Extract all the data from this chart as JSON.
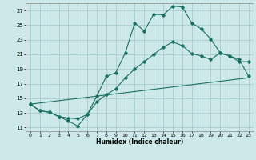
{
  "xlabel": "Humidex (Indice chaleur)",
  "background_color": "#cce8e8",
  "grid_color": "#aacccc",
  "line_color": "#1a7060",
  "xlim": [
    -0.5,
    23.5
  ],
  "ylim": [
    10.5,
    28.0
  ],
  "yticks": [
    11,
    13,
    15,
    17,
    19,
    21,
    23,
    25,
    27
  ],
  "xticks": [
    0,
    1,
    2,
    3,
    4,
    5,
    6,
    7,
    8,
    9,
    10,
    11,
    12,
    13,
    14,
    15,
    16,
    17,
    18,
    19,
    20,
    21,
    22,
    23
  ],
  "series1_x": [
    0,
    1,
    2,
    3,
    4,
    5,
    6,
    7,
    8,
    9,
    10,
    11,
    12,
    13,
    14,
    15,
    16,
    17,
    18,
    19,
    20,
    21,
    22,
    23
  ],
  "series1_y": [
    14.2,
    13.3,
    13.1,
    12.5,
    11.9,
    11.2,
    12.8,
    15.3,
    18.0,
    18.5,
    21.2,
    25.3,
    24.2,
    26.5,
    26.4,
    27.6,
    27.5,
    25.3,
    24.5,
    23.1,
    21.2,
    20.8,
    20.0,
    20.0
  ],
  "series2_x": [
    0,
    1,
    2,
    3,
    4,
    5,
    6,
    7,
    8,
    9,
    10,
    11,
    12,
    13,
    14,
    15,
    16,
    17,
    18,
    19,
    20,
    21,
    22,
    23
  ],
  "series2_y": [
    14.2,
    13.3,
    13.1,
    12.5,
    12.3,
    12.2,
    12.8,
    14.5,
    15.5,
    16.3,
    17.8,
    19.0,
    20.0,
    21.0,
    22.0,
    22.7,
    22.2,
    21.1,
    20.8,
    20.3,
    21.2,
    20.8,
    20.3,
    18.0
  ],
  "series3_x": [
    0,
    23
  ],
  "series3_y": [
    14.2,
    17.8
  ]
}
